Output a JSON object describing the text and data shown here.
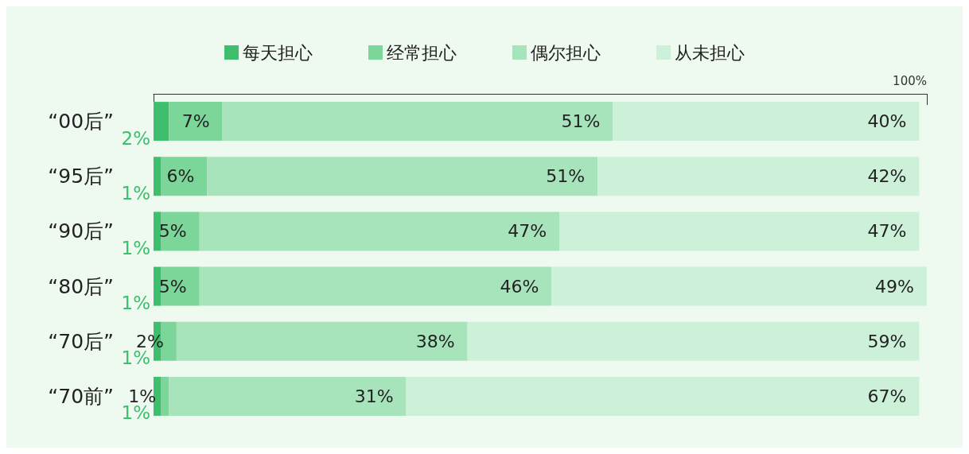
{
  "chart_data": {
    "type": "bar",
    "orientation": "horizontal",
    "stacked": true,
    "categories": [
      "“00后”",
      "“95后”",
      "“90后”",
      "“80后”",
      "“70后”",
      "“70前”"
    ],
    "series": [
      {
        "name": "每天担心",
        "color": "#3dbf6e",
        "values": [
          2,
          1,
          1,
          1,
          1,
          1
        ],
        "value_labels": [
          "2%",
          "1%",
          "1%",
          "1%",
          "1%",
          "1%"
        ]
      },
      {
        "name": "经常担心",
        "color": "#7dd699",
        "values": [
          7,
          6,
          5,
          5,
          2,
          1
        ],
        "value_labels": [
          "7%",
          "6%",
          "5%",
          "5%",
          "2%",
          "1%"
        ]
      },
      {
        "name": "偶尔担心",
        "color": "#a8e4bb",
        "values": [
          51,
          51,
          47,
          46,
          38,
          31
        ],
        "value_labels": [
          "51%",
          "51%",
          "47%",
          "46%",
          "38%",
          "31%"
        ]
      },
      {
        "name": "从未担心",
        "color": "#cdf0d8",
        "values": [
          40,
          42,
          47,
          49,
          59,
          67
        ],
        "value_labels": [
          "40%",
          "42%",
          "47%",
          "49%",
          "59%",
          "67%"
        ]
      }
    ],
    "xlim": [
      0,
      101
    ],
    "annotations": [
      "100%"
    ],
    "legend": "top"
  }
}
